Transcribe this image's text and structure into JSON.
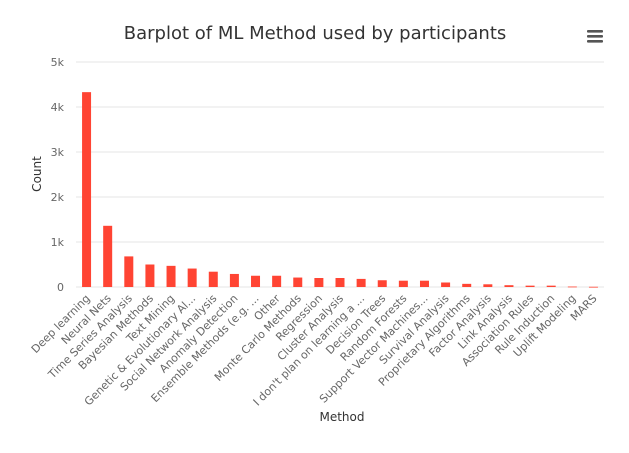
{
  "chart_data": {
    "type": "bar",
    "title": "Barplot of ML Method used by participants",
    "xlabel": "Method",
    "ylabel": "Count",
    "ylim": [
      0,
      5000
    ],
    "yticks": [
      "0",
      "1k",
      "2k",
      "3k",
      "4k",
      "5k"
    ],
    "grid": true,
    "legend": "none",
    "bar_color": "#ff4433",
    "categories": [
      "Deep learning",
      "Neural Nets",
      "Time Series Analysis",
      "Bayesian Methods",
      "Text Mining",
      "Genetic & Evolutionary Al...",
      "Social Network Analysis",
      "Anomaly Detection",
      "Ensemble Methods (e.g. ...",
      "Other",
      "Monte Carlo Methods",
      "Regression",
      "Cluster Analysis",
      "I don't plan on learning a ...",
      "Decision Trees",
      "Random Forests",
      "Support Vector Machines...",
      "Survival Analysis",
      "Proprietary Algorithms",
      "Factor Analysis",
      "Link Analysis",
      "Association Rules",
      "Rule Induction",
      "Uplift Modeling",
      "MARS"
    ],
    "values": [
      4330,
      1360,
      680,
      500,
      470,
      410,
      340,
      290,
      250,
      250,
      210,
      200,
      200,
      180,
      150,
      140,
      140,
      100,
      70,
      60,
      40,
      30,
      30,
      10,
      5
    ]
  },
  "toolbar": {
    "menu_icon": "hamburger-menu-icon"
  }
}
